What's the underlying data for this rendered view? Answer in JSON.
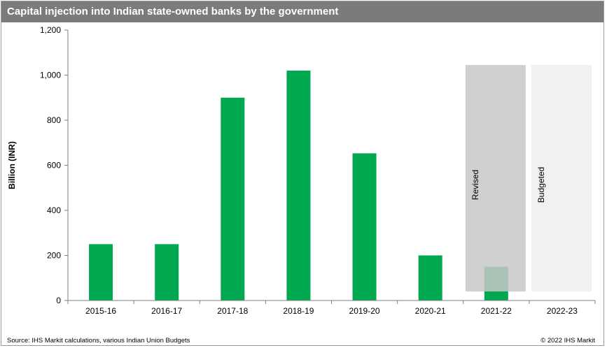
{
  "title": "Capital injection into Indian state-owned banks by the government",
  "source": "Source: IHS Markit calculations, various Indian Union Budgets",
  "copyright": "© 2022 IHS Markit",
  "colors": {
    "title_bar": "#7b7b7b",
    "bar": "#00a94f",
    "revised_band": "#c8c8c8",
    "budgeted_band": "#efefef"
  },
  "chart_data": {
    "type": "bar",
    "categories": [
      "2015-16",
      "2016-17",
      "2017-18",
      "2018-19",
      "2019-20",
      "2020-21",
      "2021-22",
      "2022-23"
    ],
    "values": [
      250,
      250,
      900,
      1020,
      653,
      200,
      150,
      null
    ],
    "ylabel": "Billion (INR)",
    "xlabel": "",
    "ylim": [
      0,
      1200
    ],
    "yticks": [
      0,
      200,
      400,
      600,
      800,
      1000,
      1200
    ],
    "ytick_labels": [
      "0",
      "200",
      "400",
      "600",
      "800",
      "1,000",
      "1,200"
    ],
    "grid": false,
    "annotations": [
      {
        "label": "Revised",
        "category": "2021-22"
      },
      {
        "label": "Budgeted",
        "category": "2022-23"
      }
    ]
  }
}
